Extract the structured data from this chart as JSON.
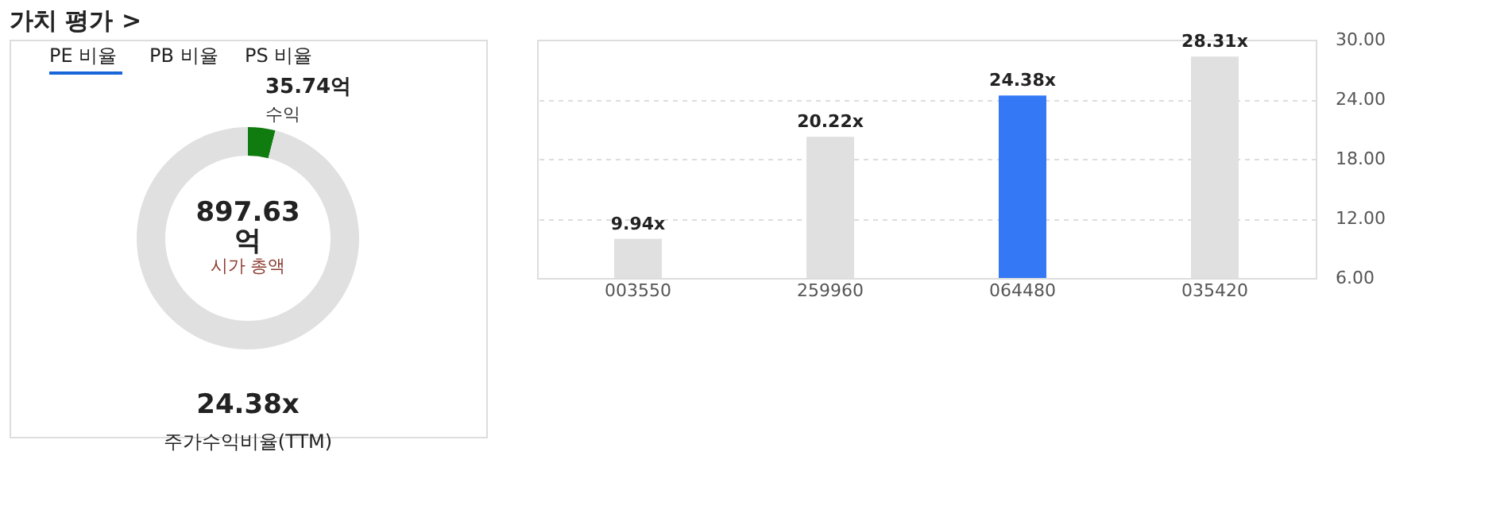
{
  "chart_data": [
    {
      "type": "donut",
      "title": "가치 평가 >",
      "categories": [
        "수익",
        null
      ],
      "values": [
        35.74,
        861.89
      ],
      "colors": [
        "#107c10",
        "#e0e0e0"
      ],
      "value_labels": [
        "35.74억",
        null
      ],
      "annotations": [
        "PE 비율",
        "PB 비율",
        "PS 비율",
        "897.63 억",
        "시가 총액",
        "24.38x",
        "주가수익비율(TTM)"
      ]
    },
    {
      "type": "bar",
      "categories": [
        "003550",
        "259960",
        "064480",
        "035420"
      ],
      "values": [
        9.94,
        20.22,
        24.38,
        28.31
      ],
      "colors": [
        "#e0e0e0",
        "#e0e0e0",
        "#3478f6",
        "#e0e0e0"
      ],
      "value_labels": [
        "9.94x",
        "20.22x",
        "24.38x",
        "28.31x"
      ],
      "ylim": [
        6,
        30
      ],
      "yticks": [
        {
          "value": 6,
          "label": "6.00"
        },
        {
          "value": 12,
          "label": "12.00"
        },
        {
          "value": 18,
          "label": "18.00"
        },
        {
          "value": 24,
          "label": "24.00"
        },
        {
          "value": 30,
          "label": "30.00"
        }
      ],
      "grid": "y"
    }
  ]
}
